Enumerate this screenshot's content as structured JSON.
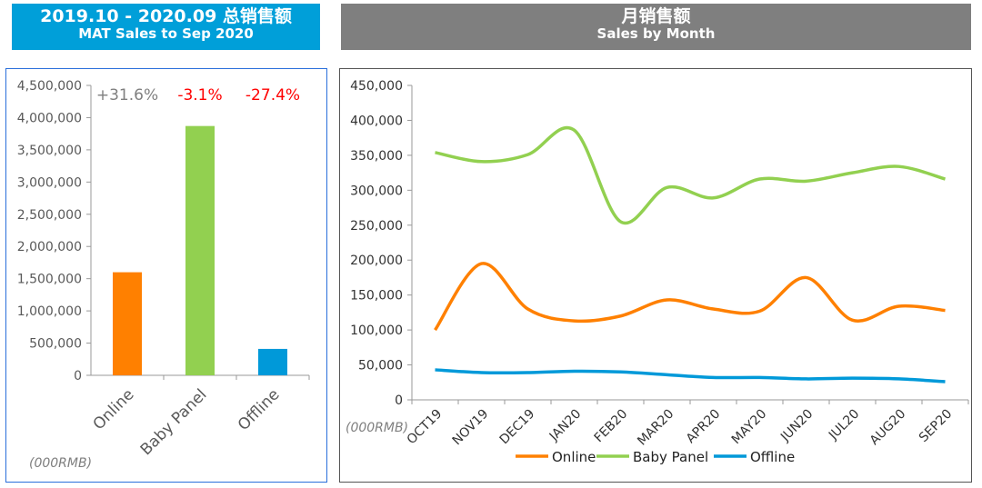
{
  "left_header": {
    "title": "2019.10 - 2020.09 总销售额",
    "subtitle": "MAT Sales to Sep 2020"
  },
  "right_header": {
    "title": "月销售额",
    "subtitle": "Sales by Month"
  },
  "colors": {
    "online": "#ff8000",
    "baby_panel": "#92d050",
    "offline": "#0099d9",
    "positive": "#7f7f7f",
    "negative": "#ff0000"
  },
  "chart_data": [
    {
      "type": "bar",
      "title": "MAT Sales to Sep 2020",
      "unit_label": "(000RMB)",
      "categories": [
        "Online",
        "Baby Panel",
        "Offline"
      ],
      "values": [
        1600000,
        3870000,
        410000
      ],
      "growth_labels": [
        "+31.6%",
        "-3.1%",
        "-27.4%"
      ],
      "ylim": [
        0,
        4500000
      ],
      "yticks": [
        "0",
        "500,000",
        "1,000,000",
        "1,500,000",
        "2,000,000",
        "2,500,000",
        "3,000,000",
        "3,500,000",
        "4,000,000",
        "4,500,000"
      ]
    },
    {
      "type": "line",
      "title": "Sales by Month",
      "unit_label": "(000RMB)",
      "categories": [
        "OCT19",
        "NOV19",
        "DEC19",
        "JAN20",
        "FEB20",
        "MAR20",
        "APR20",
        "MAY20",
        "JUN20",
        "JUL20",
        "AUG20",
        "SEP20"
      ],
      "ylim": [
        0,
        450000
      ],
      "yticks": [
        "0",
        "50,000",
        "100,000",
        "150,000",
        "200,000",
        "250,000",
        "300,000",
        "350,000",
        "400,000",
        "450,000"
      ],
      "legend_position": "bottom",
      "series": [
        {
          "name": "Online",
          "values": [
            100000,
            195000,
            130000,
            113000,
            120000,
            143000,
            130000,
            127000,
            175000,
            114000,
            134000,
            128000
          ]
        },
        {
          "name": "Baby Panel",
          "values": [
            354000,
            341000,
            351000,
            386000,
            255000,
            304000,
            289000,
            316000,
            313000,
            325000,
            334000,
            316000
          ]
        },
        {
          "name": "Offline",
          "values": [
            43000,
            39000,
            39000,
            41000,
            40000,
            36000,
            32000,
            32000,
            30000,
            31000,
            30000,
            26000
          ]
        }
      ]
    }
  ]
}
